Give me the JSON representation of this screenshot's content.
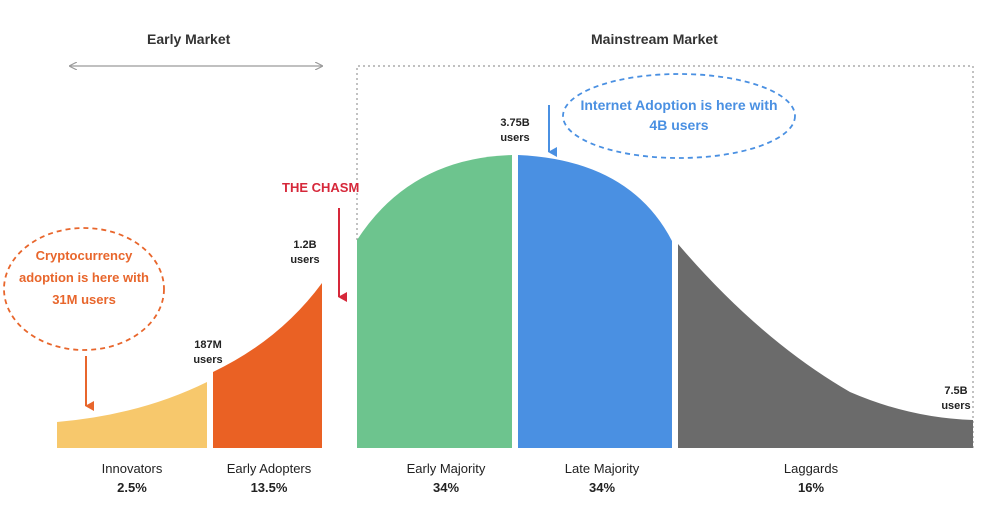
{
  "headers": {
    "early_market": "Early Market",
    "mainstream_market": "Mainstream Market"
  },
  "segments": [
    {
      "name": "Innovators",
      "percent": "2.5%",
      "color": "#f7c86c"
    },
    {
      "name": "Early Adopters",
      "percent": "13.5%",
      "color": "#ea6124"
    },
    {
      "name": "Early Majority",
      "percent": "34%",
      "color": "#6dc48e"
    },
    {
      "name": "Late Majority",
      "percent": "34%",
      "color": "#4a90e2"
    },
    {
      "name": "Laggards",
      "percent": "16%",
      "color": "#6b6b6b"
    }
  ],
  "user_counts": {
    "innovators_end": {
      "line1": "187M",
      "line2": "users"
    },
    "early_adopters_end": {
      "line1": "1.2B",
      "line2": "users"
    },
    "majority_peak": {
      "line1": "3.75B",
      "line2": "users"
    },
    "laggards_end": {
      "line1": "7.5B",
      "line2": "users"
    }
  },
  "chasm_label": "THE CHASM",
  "crypto_note": "Cryptocurrency adoption is here with 31M users",
  "internet_note": "Internet Adoption is here with 4B users",
  "colors": {
    "chasm": "#d6283a",
    "crypto": "#e8662c",
    "internet": "#4a90e2",
    "market_arrow": "#9a9a9a",
    "mainstream_box": "#9a9a9a"
  }
}
